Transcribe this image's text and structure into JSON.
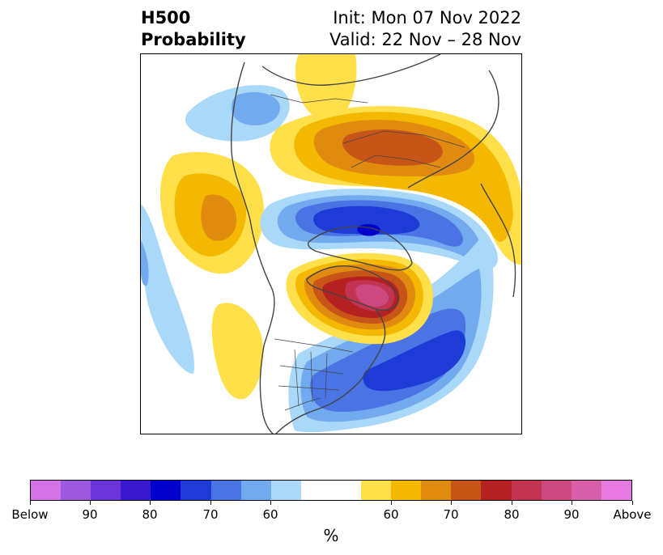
{
  "title": {
    "line1": "H500",
    "line2": "Probability"
  },
  "run_info": {
    "init": "Init: Mon 07 Nov 2022",
    "valid": "Valid: 22 Nov – 28 Nov"
  },
  "colorbar": {
    "colors": [
      "#d572e8",
      "#9b59e0",
      "#6a35d8",
      "#3a18d0",
      "#0000cc",
      "#1e3bd8",
      "#4a74e4",
      "#72aaf0",
      "#a9d8f8",
      "#ffffff",
      "#ffe04a",
      "#f5b800",
      "#e08a10",
      "#c85518",
      "#b52020",
      "#c23452",
      "#cc4a80",
      "#d860a8",
      "#e77ae0"
    ],
    "tick_labels": [
      "Below",
      "90",
      "80",
      "70",
      "60",
      "60",
      "70",
      "80",
      "90",
      "Above"
    ],
    "unit": "%"
  },
  "map": {
    "fill_colors": {
      "above_50": "#ffe04a",
      "above_60": "#f5b800",
      "above_70": "#e08a10",
      "above_75": "#c85518",
      "above_80": "#b52020",
      "above_85": "#c23452",
      "above_90": "#cc4a80",
      "below_50": "#a9d8f8",
      "below_60": "#72aaf0",
      "below_70": "#4a74e4",
      "below_75": "#1e3bd8",
      "below_80": "#0000cc"
    },
    "border_color": "#444444"
  }
}
